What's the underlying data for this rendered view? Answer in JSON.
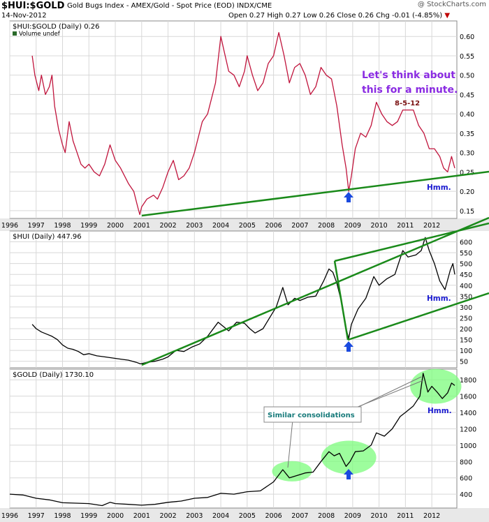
{
  "header": {
    "symbol": "$HUI:$GOLD",
    "description": "Gold Bugs Index - AMEX/Gold - Spot Price (EOD)  INDX/CME",
    "date": "14-Nov-2012",
    "ohlc": "Open 0.27  High 0.27  Low 0.26  Close 0.26  Chg -0.01 (-4.85%)",
    "down_arrow": "▼",
    "credit": "@ StockCharts.com"
  },
  "annotations": {
    "think": [
      "Let's think about",
      "this for a minute."
    ],
    "date_note": "8-5-12",
    "hmm": "Hmm.",
    "similar": "Similar consolidations"
  },
  "colors": {
    "ratio_line": "#c0143c",
    "price_line": "#000000",
    "trend_line": "#1a8a1a",
    "annotation_purple": "#8a2be2",
    "annotation_blue": "#1a1ad0",
    "highlight": "#7cfc7c",
    "arrow": "#1a4adf",
    "panel_bg": "#ffffff",
    "grid": "#d8d8d8"
  },
  "chart_data": [
    {
      "type": "line",
      "title": "$HUI:$GOLD (Daily) 0.26",
      "legend": "Volume undef",
      "x_ticks": [
        "1996",
        "1997",
        "1998",
        "1999",
        "2000",
        "2001",
        "2002",
        "2003",
        "2004",
        "2005",
        "2006",
        "2007",
        "2008",
        "2009",
        "2010",
        "2011",
        "2012"
      ],
      "y_ticks": [
        "0.15",
        "0.20",
        "0.25",
        "0.30",
        "0.35",
        "0.40",
        "0.45",
        "0.50",
        "0.55",
        "0.60"
      ],
      "ylim": [
        0.13,
        0.64
      ],
      "series": [
        {
          "values": [
            [
              1996.85,
              0.55
            ],
            [
              1996.95,
              0.5
            ],
            [
              1997.1,
              0.46
            ],
            [
              1997.2,
              0.5
            ],
            [
              1997.35,
              0.45
            ],
            [
              1997.5,
              0.47
            ],
            [
              1997.6,
              0.5
            ],
            [
              1997.7,
              0.42
            ],
            [
              1997.85,
              0.36
            ],
            [
              1998.0,
              0.32
            ],
            [
              1998.1,
              0.3
            ],
            [
              1998.25,
              0.38
            ],
            [
              1998.4,
              0.33
            ],
            [
              1998.55,
              0.3
            ],
            [
              1998.7,
              0.27
            ],
            [
              1998.85,
              0.26
            ],
            [
              1999.0,
              0.27
            ],
            [
              1999.2,
              0.25
            ],
            [
              1999.4,
              0.24
            ],
            [
              1999.6,
              0.27
            ],
            [
              1999.8,
              0.32
            ],
            [
              2000.0,
              0.28
            ],
            [
              2000.2,
              0.26
            ],
            [
              2000.5,
              0.22
            ],
            [
              2000.7,
              0.2
            ],
            [
              2000.85,
              0.16
            ],
            [
              2000.93,
              0.14
            ],
            [
              2001.0,
              0.16
            ],
            [
              2001.2,
              0.18
            ],
            [
              2001.45,
              0.19
            ],
            [
              2001.6,
              0.18
            ],
            [
              2001.8,
              0.21
            ],
            [
              2002.0,
              0.25
            ],
            [
              2002.2,
              0.28
            ],
            [
              2002.4,
              0.23
            ],
            [
              2002.6,
              0.24
            ],
            [
              2002.8,
              0.26
            ],
            [
              2003.0,
              0.3
            ],
            [
              2003.3,
              0.38
            ],
            [
              2003.5,
              0.4
            ],
            [
              2003.8,
              0.48
            ],
            [
              2004.0,
              0.6
            ],
            [
              2004.1,
              0.57
            ],
            [
              2004.3,
              0.51
            ],
            [
              2004.5,
              0.5
            ],
            [
              2004.7,
              0.47
            ],
            [
              2004.9,
              0.51
            ],
            [
              2005.0,
              0.55
            ],
            [
              2005.2,
              0.5
            ],
            [
              2005.4,
              0.46
            ],
            [
              2005.6,
              0.48
            ],
            [
              2005.8,
              0.53
            ],
            [
              2006.0,
              0.55
            ],
            [
              2006.2,
              0.61
            ],
            [
              2006.4,
              0.55
            ],
            [
              2006.6,
              0.48
            ],
            [
              2006.8,
              0.52
            ],
            [
              2007.0,
              0.53
            ],
            [
              2007.2,
              0.5
            ],
            [
              2007.4,
              0.45
            ],
            [
              2007.6,
              0.47
            ],
            [
              2007.8,
              0.52
            ],
            [
              2008.0,
              0.5
            ],
            [
              2008.2,
              0.49
            ],
            [
              2008.4,
              0.42
            ],
            [
              2008.6,
              0.32
            ],
            [
              2008.75,
              0.26
            ],
            [
              2008.85,
              0.2
            ],
            [
              2008.95,
              0.24
            ],
            [
              2009.1,
              0.31
            ],
            [
              2009.3,
              0.35
            ],
            [
              2009.5,
              0.34
            ],
            [
              2009.7,
              0.37
            ],
            [
              2009.9,
              0.43
            ],
            [
              2010.1,
              0.4
            ],
            [
              2010.3,
              0.38
            ],
            [
              2010.5,
              0.37
            ],
            [
              2010.7,
              0.38
            ],
            [
              2010.9,
              0.41
            ],
            [
              2011.1,
              0.41
            ],
            [
              2011.3,
              0.41
            ],
            [
              2011.5,
              0.37
            ],
            [
              2011.7,
              0.35
            ],
            [
              2011.9,
              0.31
            ],
            [
              2012.1,
              0.31
            ],
            [
              2012.3,
              0.29
            ],
            [
              2012.45,
              0.26
            ],
            [
              2012.6,
              0.25
            ],
            [
              2012.75,
              0.29
            ],
            [
              2012.87,
              0.26
            ]
          ]
        }
      ]
    },
    {
      "type": "line",
      "title": "$HUI (Daily) 447.96",
      "y_ticks": [
        "50",
        "100",
        "150",
        "200",
        "250",
        "300",
        "350",
        "400",
        "450",
        "500",
        "550",
        "600"
      ],
      "ylim": [
        20,
        650
      ],
      "series": [
        {
          "values": [
            [
              1996.85,
              220
            ],
            [
              1997.0,
              200
            ],
            [
              1997.2,
              185
            ],
            [
              1997.4,
              175
            ],
            [
              1997.6,
              165
            ],
            [
              1997.8,
              150
            ],
            [
              1998.0,
              125
            ],
            [
              1998.2,
              110
            ],
            [
              1998.4,
              105
            ],
            [
              1998.6,
              95
            ],
            [
              1998.8,
              80
            ],
            [
              1999.0,
              85
            ],
            [
              1999.3,
              75
            ],
            [
              1999.6,
              70
            ],
            [
              1999.9,
              65
            ],
            [
              2000.2,
              60
            ],
            [
              2000.5,
              55
            ],
            [
              2000.8,
              45
            ],
            [
              2000.95,
              38
            ],
            [
              2001.2,
              45
            ],
            [
              2001.5,
              50
            ],
            [
              2001.8,
              60
            ],
            [
              2002.0,
              70
            ],
            [
              2002.3,
              100
            ],
            [
              2002.6,
              95
            ],
            [
              2002.9,
              115
            ],
            [
              2003.2,
              130
            ],
            [
              2003.5,
              165
            ],
            [
              2003.9,
              230
            ],
            [
              2004.1,
              210
            ],
            [
              2004.3,
              190
            ],
            [
              2004.6,
              230
            ],
            [
              2004.9,
              225
            ],
            [
              2005.1,
              200
            ],
            [
              2005.3,
              180
            ],
            [
              2005.6,
              200
            ],
            [
              2005.9,
              260
            ],
            [
              2006.1,
              300
            ],
            [
              2006.35,
              390
            ],
            [
              2006.55,
              310
            ],
            [
              2006.8,
              340
            ],
            [
              2007.0,
              330
            ],
            [
              2007.3,
              345
            ],
            [
              2007.6,
              350
            ],
            [
              2007.9,
              420
            ],
            [
              2008.1,
              475
            ],
            [
              2008.25,
              460
            ],
            [
              2008.4,
              410
            ],
            [
              2008.6,
              310
            ],
            [
              2008.75,
              200
            ],
            [
              2008.85,
              155
            ],
            [
              2008.95,
              220
            ],
            [
              2009.2,
              290
            ],
            [
              2009.5,
              340
            ],
            [
              2009.8,
              440
            ],
            [
              2010.0,
              400
            ],
            [
              2010.3,
              430
            ],
            [
              2010.6,
              450
            ],
            [
              2010.9,
              560
            ],
            [
              2011.1,
              530
            ],
            [
              2011.4,
              540
            ],
            [
              2011.6,
              560
            ],
            [
              2011.75,
              620
            ],
            [
              2011.9,
              560
            ],
            [
              2012.1,
              500
            ],
            [
              2012.3,
              420
            ],
            [
              2012.5,
              380
            ],
            [
              2012.7,
              470
            ],
            [
              2012.8,
              500
            ],
            [
              2012.87,
              450
            ]
          ]
        }
      ]
    },
    {
      "type": "line",
      "title": "$GOLD (Daily) 1730.10",
      "y_ticks": [
        "400",
        "600",
        "800",
        "1000",
        "1200",
        "1400",
        "1600",
        "1800"
      ],
      "ylim": [
        230,
        1930
      ],
      "series": [
        {
          "values": [
            [
              1996.0,
              400
            ],
            [
              1996.5,
              390
            ],
            [
              1997.0,
              350
            ],
            [
              1997.5,
              330
            ],
            [
              1998.0,
              295
            ],
            [
              1998.5,
              290
            ],
            [
              1999.0,
              285
            ],
            [
              1999.5,
              260
            ],
            [
              1999.8,
              300
            ],
            [
              2000.0,
              285
            ],
            [
              2000.5,
              275
            ],
            [
              2001.0,
              265
            ],
            [
              2001.5,
              275
            ],
            [
              2002.0,
              300
            ],
            [
              2002.5,
              315
            ],
            [
              2003.0,
              350
            ],
            [
              2003.5,
              360
            ],
            [
              2004.0,
              410
            ],
            [
              2004.5,
              400
            ],
            [
              2005.0,
              430
            ],
            [
              2005.5,
              440
            ],
            [
              2006.0,
              550
            ],
            [
              2006.35,
              700
            ],
            [
              2006.6,
              600
            ],
            [
              2006.9,
              630
            ],
            [
              2007.2,
              660
            ],
            [
              2007.5,
              670
            ],
            [
              2007.8,
              800
            ],
            [
              2008.1,
              920
            ],
            [
              2008.3,
              870
            ],
            [
              2008.5,
              900
            ],
            [
              2008.75,
              740
            ],
            [
              2008.9,
              800
            ],
            [
              2009.1,
              920
            ],
            [
              2009.4,
              930
            ],
            [
              2009.7,
              1000
            ],
            [
              2009.9,
              1150
            ],
            [
              2010.2,
              1110
            ],
            [
              2010.5,
              1200
            ],
            [
              2010.8,
              1350
            ],
            [
              2011.0,
              1400
            ],
            [
              2011.3,
              1480
            ],
            [
              2011.55,
              1600
            ],
            [
              2011.67,
              1880
            ],
            [
              2011.85,
              1650
            ],
            [
              2012.0,
              1720
            ],
            [
              2012.2,
              1650
            ],
            [
              2012.4,
              1570
            ],
            [
              2012.6,
              1640
            ],
            [
              2012.75,
              1760
            ],
            [
              2012.87,
              1730
            ]
          ]
        }
      ]
    }
  ]
}
